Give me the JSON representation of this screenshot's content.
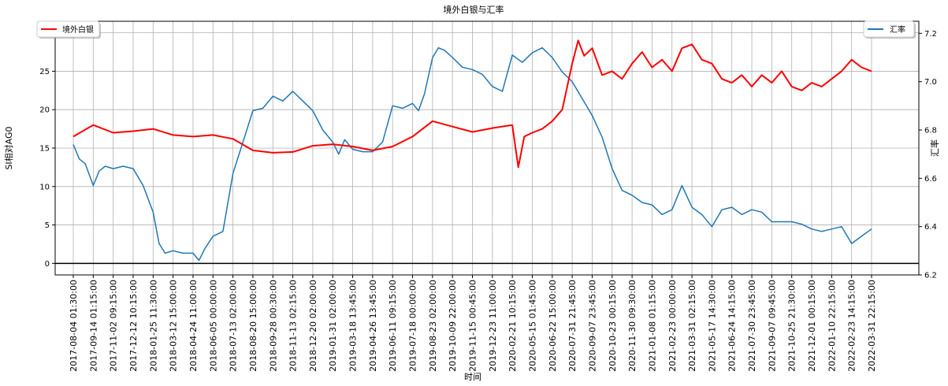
{
  "chart_data": {
    "type": "line",
    "title": "境外白银与汇率",
    "xlabel": "时间",
    "ylabel_left": "SI相对AG0",
    "ylabel_right": "汇率",
    "ylim_left": [
      -1.5,
      31.5
    ],
    "ylim_right": [
      6.2,
      7.25
    ],
    "yticks_left": [
      0,
      5,
      10,
      15,
      20,
      25,
      30
    ],
    "yticks_right": [
      6.2,
      6.4,
      6.6,
      6.8,
      7.0,
      7.2
    ],
    "grid": true,
    "zero_line": 0,
    "legend_left": {
      "position": "top-left",
      "label": "境外白银",
      "color": "#ff0000"
    },
    "legend_right": {
      "position": "top-right",
      "label": "汇率",
      "color": "#1f77b4"
    },
    "x_tick_labels": [
      "2017-08-04 01:30:00",
      "2017-09-14 01:15:00",
      "2017-11-02 09:15:00",
      "2017-12-12 10:15:00",
      "2018-01-25 11:30:00",
      "2018-03-12 15:00:00",
      "2018-04-24 11:00:00",
      "2018-06-05 00:00:00",
      "2018-07-13 02:00:00",
      "2018-08-20 15:00:00",
      "2018-09-28 00:30:00",
      "2018-11-13 02:15:00",
      "2018-12-20 02:00:00",
      "2019-01-31 02:00:00",
      "2019-03-18 13:45:00",
      "2019-04-26 13:45:00",
      "2019-06-11 09:15:00",
      "2019-07-18 00:00:00",
      "2019-08-23 02:00:00",
      "2019-10-09 22:00:00",
      "2019-11-15 00:45:00",
      "2019-12-23 11:00:00",
      "2020-02-21 10:15:00",
      "2020-05-15 01:45:00",
      "2020-06-22 15:00:00",
      "2020-07-31 21:45:00",
      "2020-09-07 23:45:00",
      "2020-10-23 00:15:00",
      "2020-11-30 09:30:00",
      "2021-01-08 01:15:00",
      "2021-02-23 00:00:00",
      "2021-03-31 02:15:00",
      "2021-05-17 14:30:00",
      "2021-06-24 14:15:00",
      "2021-07-30 23:45:00",
      "2021-09-07 09:45:00",
      "2021-10-25 21:30:00",
      "2021-12-01 00:15:00",
      "2022-01-10 22:15:00",
      "2022-02-23 14:15:00",
      "2022-03-31 22:15:00"
    ],
    "series": [
      {
        "name": "境外白银",
        "axis": "left",
        "color": "#ff0000",
        "x": [
          0,
          1,
          2,
          3,
          4,
          5,
          6,
          7,
          8,
          9,
          10,
          11,
          12,
          13,
          14,
          15,
          16,
          17,
          18,
          19,
          20,
          21,
          22,
          22.3,
          22.6,
          23,
          23.5,
          24,
          24.5,
          25,
          25.3,
          25.6,
          26,
          26.5,
          27,
          27.5,
          28,
          28.5,
          29,
          29.5,
          30,
          30.5,
          31,
          31.5,
          32,
          32.5,
          33,
          33.5,
          34,
          34.5,
          35,
          35.5,
          36,
          36.5,
          37,
          37.5,
          38,
          38.5,
          39,
          39.5,
          40
        ],
        "values": [
          16.5,
          18.0,
          17.0,
          17.2,
          17.5,
          16.7,
          16.5,
          16.7,
          16.2,
          14.7,
          14.4,
          14.5,
          15.3,
          15.5,
          15.2,
          14.7,
          15.2,
          16.5,
          18.5,
          17.8,
          17.1,
          17.6,
          18.0,
          12.5,
          16.5,
          17.0,
          17.5,
          18.5,
          20.0,
          26.0,
          29.0,
          27.0,
          28.0,
          24.5,
          25.0,
          24.0,
          26.0,
          27.5,
          25.5,
          26.5,
          25.0,
          28.0,
          28.5,
          26.5,
          26.0,
          24.0,
          23.5,
          24.5,
          23.0,
          24.5,
          23.5,
          25.0,
          23.0,
          22.5,
          23.5,
          23.0,
          24.0,
          25.0,
          26.5,
          25.5,
          25.0
        ]
      },
      {
        "name": "汇率",
        "axis": "right",
        "color": "#1f77b4",
        "x": [
          0,
          0.3,
          0.6,
          1,
          1.3,
          1.6,
          2,
          2.5,
          3,
          3.5,
          4,
          4.3,
          4.6,
          5,
          5.5,
          6,
          6.3,
          6.6,
          7,
          7.5,
          8,
          8.5,
          9,
          9.5,
          10,
          10.5,
          11,
          11.5,
          12,
          12.5,
          13,
          13.3,
          13.6,
          14,
          14.5,
          15,
          15.5,
          16,
          16.5,
          17,
          17.3,
          17.6,
          18,
          18.3,
          18.6,
          19,
          19.5,
          20,
          20.5,
          21,
          21.5,
          22,
          22.5,
          23,
          23.5,
          24,
          24.5,
          25,
          25.5,
          26,
          26.5,
          27,
          27.5,
          28,
          28.5,
          29,
          29.5,
          30,
          30.5,
          31,
          31.5,
          32,
          32.5,
          33,
          33.5,
          34,
          34.5,
          35,
          35.5,
          36,
          36.5,
          37,
          37.5,
          38,
          38.5,
          39,
          39.5,
          40
        ],
        "values": [
          6.74,
          6.68,
          6.66,
          6.57,
          6.63,
          6.65,
          6.64,
          6.65,
          6.64,
          6.57,
          6.46,
          6.33,
          6.29,
          6.3,
          6.29,
          6.29,
          6.26,
          6.31,
          6.36,
          6.38,
          6.62,
          6.75,
          6.88,
          6.89,
          6.94,
          6.92,
          6.96,
          6.92,
          6.88,
          6.8,
          6.75,
          6.7,
          6.76,
          6.72,
          6.71,
          6.71,
          6.75,
          6.9,
          6.89,
          6.91,
          6.88,
          6.95,
          7.1,
          7.14,
          7.13,
          7.1,
          7.06,
          7.05,
          7.03,
          6.98,
          6.96,
          7.11,
          7.08,
          7.12,
          7.14,
          7.1,
          7.04,
          7.0,
          6.93,
          6.86,
          6.77,
          6.64,
          6.55,
          6.53,
          6.5,
          6.49,
          6.45,
          6.47,
          6.57,
          6.48,
          6.45,
          6.4,
          6.47,
          6.48,
          6.45,
          6.47,
          6.46,
          6.42,
          6.42,
          6.42,
          6.41,
          6.39,
          6.38,
          6.39,
          6.4,
          6.33,
          6.36,
          6.39
        ]
      }
    ]
  }
}
